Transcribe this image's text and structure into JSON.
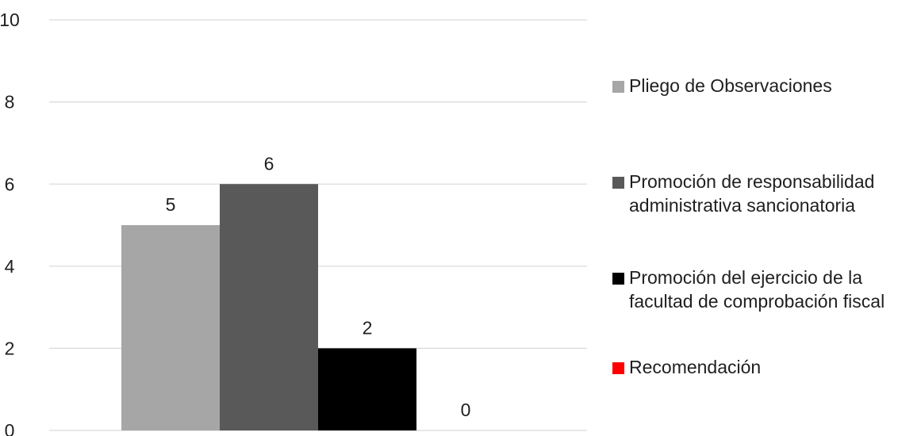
{
  "chart_data": {
    "type": "bar",
    "categories": [
      ""
    ],
    "series": [
      {
        "name": "Pliego de Observaciones",
        "values": [
          5
        ],
        "color": "#a6a6a6"
      },
      {
        "name": "Promoción de responsabilidad administrativa sancionatoria",
        "values": [
          6
        ],
        "color": "#595959"
      },
      {
        "name": "Promoción del ejercicio de la facultad de comprobación fiscal",
        "values": [
          2
        ],
        "color": "#000000"
      },
      {
        "name": "Recomendación",
        "values": [
          0
        ],
        "color": "#ff0000"
      }
    ],
    "data_labels": [
      "5",
      "6",
      "2",
      "0"
    ],
    "yticks": [
      0,
      2,
      4,
      6,
      8,
      10
    ],
    "ylim": [
      0,
      10
    ],
    "grid": true,
    "legend_position": "right"
  }
}
